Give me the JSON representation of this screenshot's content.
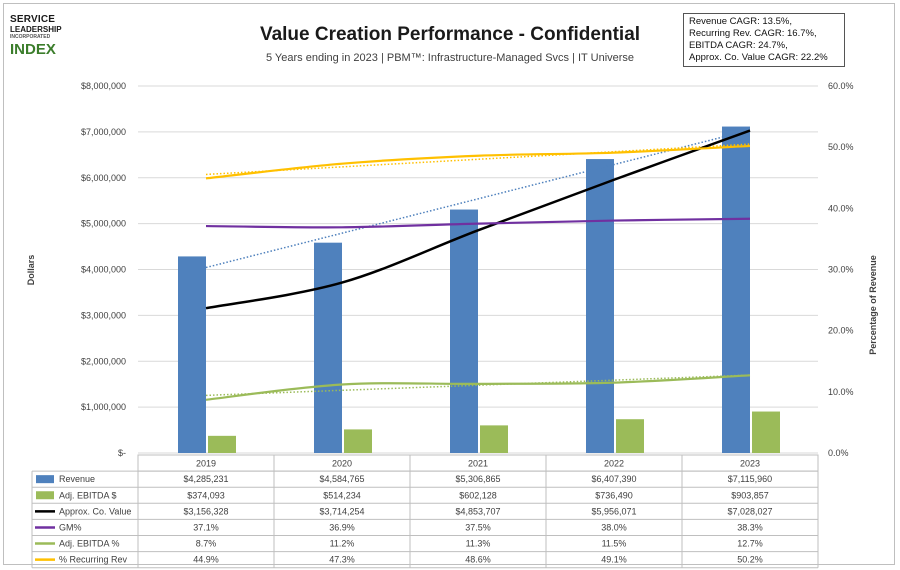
{
  "header": {
    "title": "Value Creation Performance - Confidential",
    "subtitle": "5 Years ending in 2023 | PBM™: Infrastructure-Managed Svcs | IT Universe"
  },
  "logo": {
    "line1": "SERVICE",
    "line2": "LEADERSHIP",
    "line3": "INCORPORATED",
    "line4": "INDEX"
  },
  "cagr_box": {
    "lines": [
      "Revenue CAGR: 13.5%,",
      "Recurring Rev. CAGR: 16.7%,",
      "EBITDA CAGR: 24.7%,",
      "Approx. Co. Value CAGR: 22.2%"
    ]
  },
  "chart_data": {
    "type": "bar",
    "categories": [
      "2019",
      "2020",
      "2021",
      "2022",
      "2023"
    ],
    "ylabel": "Dollars",
    "y2label": "Percentage of Revenue",
    "ylim": [
      0,
      8000000
    ],
    "y2lim": [
      0,
      60
    ],
    "y_ticks": [
      "$-",
      "$1,000,000",
      "$2,000,000",
      "$3,000,000",
      "$4,000,000",
      "$5,000,000",
      "$6,000,000",
      "$7,000,000",
      "$8,000,000"
    ],
    "y2_ticks": [
      "0.0%",
      "10.0%",
      "20.0%",
      "30.0%",
      "40.0%",
      "50.0%",
      "60.0%"
    ],
    "series": [
      {
        "name": "Revenue",
        "kind": "bar",
        "axis": "left",
        "color": "#4f81bd",
        "values": [
          4285231,
          4584765,
          5306865,
          6407390,
          7115960
        ],
        "labels": [
          "$4,285,231",
          "$4,584,765",
          "$5,306,865",
          "$6,407,390",
          "$7,115,960"
        ]
      },
      {
        "name": "Adj. EBITDA $",
        "kind": "bar",
        "axis": "left",
        "color": "#9bbb59",
        "values": [
          374093,
          514234,
          602128,
          736490,
          903857
        ],
        "labels": [
          "$374,093",
          "$514,234",
          "$602,128",
          "$736,490",
          "$903,857"
        ]
      },
      {
        "name": "Approx. Co. Value",
        "kind": "line",
        "axis": "left",
        "color": "#000000",
        "values": [
          3156328,
          3714254,
          4853707,
          5956071,
          7028027
        ],
        "labels": [
          "$3,156,328",
          "$3,714,254",
          "$4,853,707",
          "$5,956,071",
          "$7,028,027"
        ]
      },
      {
        "name": "GM%",
        "kind": "line",
        "axis": "right",
        "color": "#7030a0",
        "values": [
          37.1,
          36.9,
          37.5,
          38.0,
          38.3
        ],
        "labels": [
          "37.1%",
          "36.9%",
          "37.5%",
          "38.0%",
          "38.3%"
        ]
      },
      {
        "name": "Adj. EBITDA %",
        "kind": "line",
        "axis": "right",
        "color": "#9bbb59",
        "values": [
          8.7,
          11.2,
          11.3,
          11.5,
          12.7
        ],
        "labels": [
          "8.7%",
          "11.2%",
          "11.3%",
          "11.5%",
          "12.7%"
        ]
      },
      {
        "name": "% Recurring Rev",
        "kind": "line",
        "axis": "right",
        "color": "#ffc000",
        "values": [
          44.9,
          47.3,
          48.6,
          49.1,
          50.2
        ],
        "labels": [
          "44.9%",
          "47.3%",
          "48.6%",
          "49.1%",
          "50.2%"
        ]
      }
    ],
    "trendlines": [
      "Revenue",
      "Adj. EBITDA %",
      "% Recurring Rev"
    ],
    "legend": "data-table-below",
    "grid": true
  }
}
